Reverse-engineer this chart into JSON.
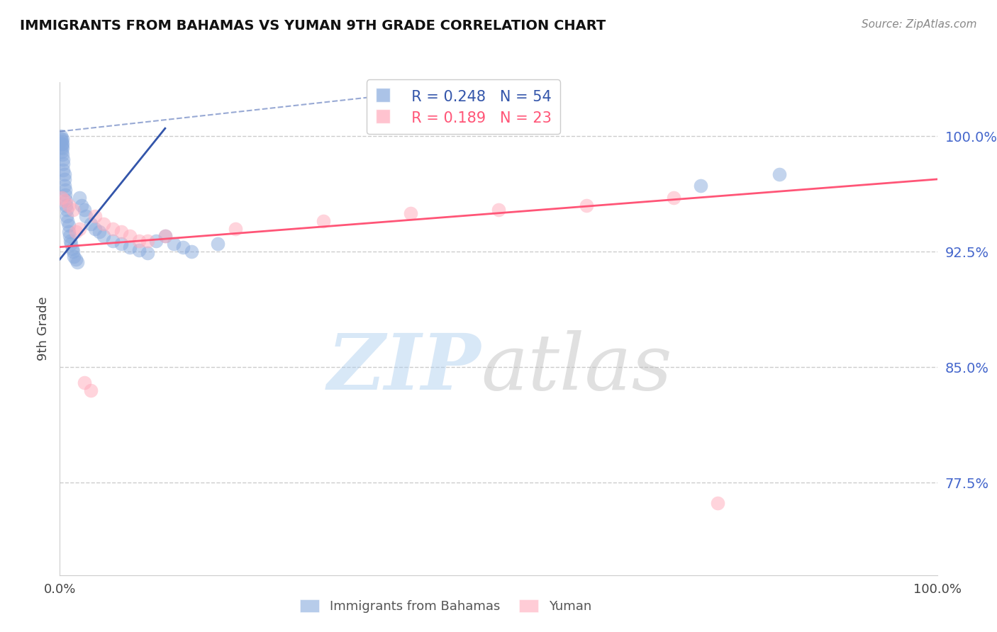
{
  "title": "IMMIGRANTS FROM BAHAMAS VS YUMAN 9TH GRADE CORRELATION CHART",
  "source_text": "Source: ZipAtlas.com",
  "ylabel": "9th Grade",
  "y_tick_values": [
    0.775,
    0.85,
    0.925,
    1.0
  ],
  "x_lim": [
    0.0,
    1.0
  ],
  "y_lim": [
    0.715,
    1.035
  ],
  "legend_blue_r": "R = 0.248",
  "legend_blue_n": "N = 54",
  "legend_pink_r": "R = 0.189",
  "legend_pink_n": "N = 23",
  "legend_label_blue": "Immigrants from Bahamas",
  "legend_label_pink": "Yuman",
  "blue_color": "#88aadd",
  "pink_color": "#ffaabb",
  "blue_line_color": "#3355aa",
  "pink_line_color": "#ff5577",
  "blue_points_x": [
    0.001,
    0.001,
    0.002,
    0.002,
    0.002,
    0.002,
    0.003,
    0.003,
    0.003,
    0.003,
    0.004,
    0.004,
    0.004,
    0.005,
    0.005,
    0.005,
    0.006,
    0.006,
    0.007,
    0.007,
    0.008,
    0.008,
    0.009,
    0.01,
    0.01,
    0.011,
    0.012,
    0.013,
    0.014,
    0.015,
    0.016,
    0.018,
    0.02,
    0.022,
    0.025,
    0.028,
    0.03,
    0.035,
    0.04,
    0.045,
    0.05,
    0.06,
    0.07,
    0.08,
    0.09,
    0.1,
    0.11,
    0.12,
    0.13,
    0.14,
    0.15,
    0.18,
    0.73,
    0.82
  ],
  "blue_points_y": [
    1.0,
    0.998,
    0.997,
    0.995,
    0.993,
    0.99,
    0.998,
    0.995,
    0.992,
    0.988,
    0.985,
    0.982,
    0.978,
    0.975,
    0.972,
    0.968,
    0.965,
    0.962,
    0.958,
    0.955,
    0.952,
    0.948,
    0.945,
    0.942,
    0.938,
    0.935,
    0.932,
    0.93,
    0.927,
    0.925,
    0.922,
    0.92,
    0.918,
    0.96,
    0.955,
    0.952,
    0.948,
    0.943,
    0.94,
    0.938,
    0.935,
    0.932,
    0.93,
    0.928,
    0.926,
    0.924,
    0.932,
    0.935,
    0.93,
    0.928,
    0.925,
    0.93,
    0.968,
    0.975
  ],
  "pink_points_x": [
    0.002,
    0.005,
    0.01,
    0.015,
    0.018,
    0.022,
    0.028,
    0.035,
    0.04,
    0.05,
    0.06,
    0.07,
    0.08,
    0.09,
    0.1,
    0.12,
    0.2,
    0.3,
    0.4,
    0.5,
    0.6,
    0.7,
    0.75
  ],
  "pink_points_y": [
    0.96,
    0.958,
    0.955,
    0.952,
    0.938,
    0.94,
    0.84,
    0.835,
    0.948,
    0.943,
    0.94,
    0.938,
    0.935,
    0.932,
    0.932,
    0.935,
    0.94,
    0.945,
    0.95,
    0.952,
    0.955,
    0.96,
    0.762
  ],
  "blue_line_x": [
    0.0,
    0.12
  ],
  "blue_line_y": [
    0.92,
    1.005
  ],
  "pink_line_x": [
    0.0,
    1.0
  ],
  "pink_line_y": [
    0.928,
    0.972
  ],
  "grid_color": "#cccccc",
  "background_color": "#ffffff",
  "title_color": "#111111",
  "source_color": "#888888",
  "tick_color": "#4466cc",
  "ylabel_color": "#444444"
}
